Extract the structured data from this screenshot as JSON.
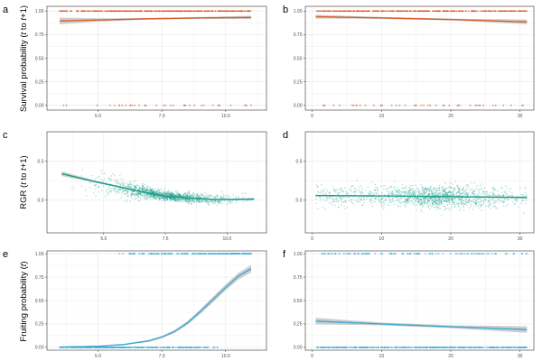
{
  "y_axis_titles": {
    "survival": "Survival probability (t to t+1)",
    "rgr": "RGR (t to t+1)",
    "fruiting": "Fruiting probability (t)"
  },
  "colors": {
    "survival": "#d95f2b",
    "rgr": "#1b9e8a",
    "fruiting": "#3fa9d3",
    "ribbon": "#bdbdbd",
    "grid": "#ebebeb",
    "panel_border": "#333333"
  },
  "chart_data": [
    {
      "panel_label": "a",
      "type": "scatter",
      "xlim": [
        3,
        11.6
      ],
      "ylim": [
        -0.05,
        1.05
      ],
      "x_ticks": [
        5.0,
        7.5,
        10.0
      ],
      "x_tick_labels": [
        "5.0",
        "7.5",
        "10.0"
      ],
      "y_ticks": [
        0,
        0.25,
        0.5,
        0.75,
        1.0
      ],
      "y_tick_labels": [
        "0.00",
        "0.25",
        "0.50",
        "0.75",
        "1.00"
      ],
      "point_style": "binary",
      "points": 420,
      "x_range": [
        3.5,
        11
      ],
      "p_zero": 0.08,
      "fit": {
        "x": [
          3.5,
          5.0,
          7.0,
          9.0,
          11.0
        ],
        "y": [
          0.895,
          0.905,
          0.918,
          0.927,
          0.932
        ]
      },
      "ribbon_halfwidth": [
        0.035,
        0.018,
        0.008,
        0.01,
        0.018
      ],
      "color_key": "survival"
    },
    {
      "panel_label": "b",
      "type": "scatter",
      "xlim": [
        -1,
        32
      ],
      "ylim": [
        -0.05,
        1.05
      ],
      "x_ticks": [
        0,
        10,
        20,
        30
      ],
      "x_tick_labels": [
        "0",
        "10",
        "20",
        "30"
      ],
      "y_ticks": [
        0,
        0.25,
        0.5,
        0.75,
        1.0
      ],
      "y_tick_labels": [
        "0.00",
        "0.25",
        "0.50",
        "0.75",
        "1.00"
      ],
      "point_style": "binary",
      "points": 420,
      "x_range": [
        0.5,
        31
      ],
      "p_zero": 0.08,
      "fit": {
        "x": [
          0.5,
          10,
          20,
          31
        ],
        "y": [
          0.94,
          0.927,
          0.91,
          0.885
        ]
      },
      "ribbon_halfwidth": [
        0.02,
        0.01,
        0.01,
        0.025
      ],
      "color_key": "survival"
    },
    {
      "panel_label": "c",
      "type": "scatter",
      "xlim": [
        2.7,
        11.6
      ],
      "ylim": [
        -0.42,
        0.88
      ],
      "x_ticks": [
        5.0,
        7.5,
        10.0
      ],
      "x_tick_labels": [
        "5.0",
        "7.5",
        "10.0"
      ],
      "y_ticks": [
        0,
        0.5
      ],
      "y_tick_labels": [
        "0.0",
        "0.5"
      ],
      "point_style": "cloud",
      "points": 1400,
      "fit": {
        "x": [
          3.3,
          4.5,
          5.5,
          6.5,
          7.5,
          8.5,
          9.5,
          10.5,
          11.1
        ],
        "y": [
          0.34,
          0.25,
          0.18,
          0.11,
          0.055,
          0.025,
          0.01,
          0.01,
          0.015
        ]
      },
      "ribbon_halfwidth": [
        0.03,
        0.015,
        0.01,
        0.008,
        0.006,
        0.006,
        0.007,
        0.01,
        0.015
      ],
      "color_key": "rgr"
    },
    {
      "panel_label": "d",
      "type": "scatter",
      "xlim": [
        -1,
        32
      ],
      "ylim": [
        -0.42,
        0.88
      ],
      "x_ticks": [
        0,
        10,
        20,
        30
      ],
      "x_tick_labels": [
        "0",
        "10",
        "20",
        "30"
      ],
      "y_ticks": [
        0,
        0.5
      ],
      "y_tick_labels": [
        "0.0",
        "0.5"
      ],
      "point_style": "cloud_uniform",
      "points": 1400,
      "fit": {
        "x": [
          0.5,
          10,
          20,
          31
        ],
        "y": [
          0.06,
          0.055,
          0.045,
          0.035
        ]
      },
      "ribbon_halfwidth": [
        0.012,
        0.006,
        0.006,
        0.012
      ],
      "color_key": "rgr"
    },
    {
      "panel_label": "e",
      "type": "scatter",
      "xlim": [
        3,
        11.6
      ],
      "ylim": [
        -0.03,
        1.03
      ],
      "x_ticks": [
        5.0,
        7.5,
        10.0
      ],
      "x_tick_labels": [
        "5.0",
        "7.5",
        "10.0"
      ],
      "y_ticks": [
        0,
        0.25,
        0.5,
        0.75,
        1.0
      ],
      "y_tick_labels": [
        "0.00",
        "0.25",
        "0.50",
        "0.75",
        "1.00"
      ],
      "point_style": "binary_e",
      "points": 600,
      "x_range": [
        3.5,
        11
      ],
      "fit": {
        "x": [
          3.5,
          5.0,
          6.0,
          7.0,
          7.5,
          8.0,
          8.5,
          9.0,
          9.5,
          10.0,
          10.5,
          11.0
        ],
        "y": [
          0.003,
          0.012,
          0.03,
          0.07,
          0.11,
          0.17,
          0.26,
          0.38,
          0.51,
          0.64,
          0.76,
          0.84
        ]
      },
      "ribbon_halfwidth": [
        0.002,
        0.004,
        0.006,
        0.01,
        0.012,
        0.015,
        0.02,
        0.025,
        0.03,
        0.032,
        0.035,
        0.04
      ],
      "color_key": "fruiting"
    },
    {
      "panel_label": "f",
      "type": "scatter",
      "xlim": [
        -1,
        32
      ],
      "ylim": [
        -0.03,
        1.03
      ],
      "x_ticks": [
        0,
        10,
        20,
        30
      ],
      "x_tick_labels": [
        "0",
        "10",
        "20",
        "30"
      ],
      "y_ticks": [
        0,
        0.25,
        0.5,
        0.75,
        1.0
      ],
      "y_tick_labels": [
        "0.00",
        "0.25",
        "0.50",
        "0.75",
        "1.00"
      ],
      "point_style": "binary",
      "points": 500,
      "x_range": [
        0.5,
        31
      ],
      "p_zero": 0.78,
      "fit": {
        "x": [
          0.5,
          10,
          20,
          31
        ],
        "y": [
          0.28,
          0.25,
          0.22,
          0.19
        ]
      },
      "ribbon_halfwidth": [
        0.035,
        0.015,
        0.015,
        0.035
      ],
      "color_key": "fruiting"
    }
  ]
}
